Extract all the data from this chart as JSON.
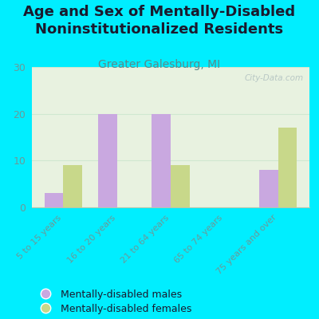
{
  "title": "Age and Sex of Mentally-Disabled\nNoninstitutionalized Residents",
  "subtitle": "Greater Galesburg, MI",
  "categories": [
    "5 to 15 years",
    "16 to 20 years",
    "21 to 64 years",
    "65 to 74 years",
    "75 years and over"
  ],
  "males": [
    3,
    20,
    20,
    0,
    8
  ],
  "females": [
    9,
    0,
    9,
    0,
    17
  ],
  "male_color": "#c9a8e0",
  "female_color": "#c8d88a",
  "ylim": [
    0,
    30
  ],
  "yticks": [
    0,
    10,
    20,
    30
  ],
  "background_color": "#00eeff",
  "plot_bg_color": "#e8f2e0",
  "watermark": "City-Data.com",
  "bar_width": 0.35,
  "legend_male": "Mentally-disabled males",
  "legend_female": "Mentally-disabled females",
  "title_fontsize": 13,
  "subtitle_fontsize": 10,
  "title_color": "#1a1a2e",
  "subtitle_color": "#5a8a8a",
  "tick_color": "#6a9a9a",
  "grid_color": "#d0e8d0"
}
